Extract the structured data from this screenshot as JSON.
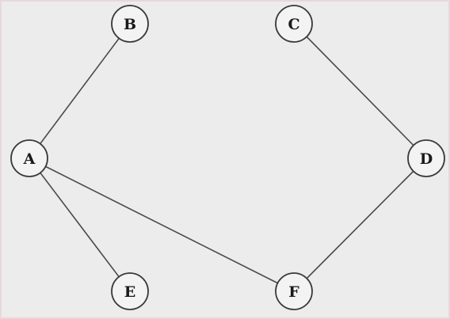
{
  "graph": {
    "nodes": [
      {
        "id": "A",
        "label": "A"
      },
      {
        "id": "B",
        "label": "B"
      },
      {
        "id": "C",
        "label": "C"
      },
      {
        "id": "D",
        "label": "D"
      },
      {
        "id": "E",
        "label": "E"
      },
      {
        "id": "F",
        "label": "F"
      }
    ],
    "edges": [
      {
        "from": "A",
        "to": "B"
      },
      {
        "from": "A",
        "to": "E"
      },
      {
        "from": "A",
        "to": "F"
      },
      {
        "from": "C",
        "to": "D"
      },
      {
        "from": "D",
        "to": "F"
      }
    ]
  }
}
